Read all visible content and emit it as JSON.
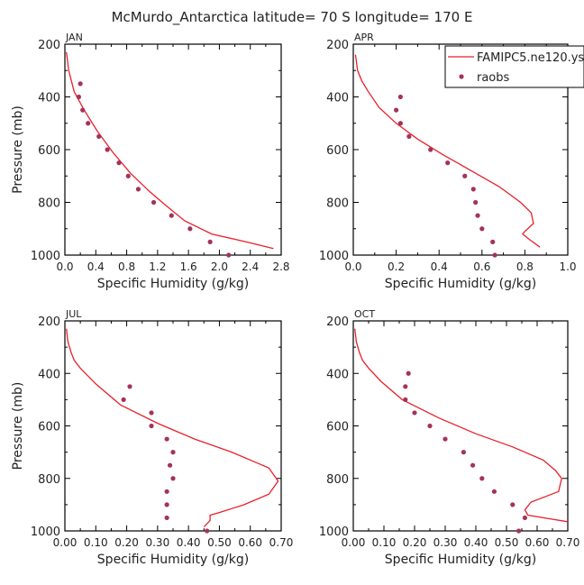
{
  "title": "McMurdo_Antarctica  latitude= 70 S longitude= 170 E",
  "colors": {
    "model": "#e8202a",
    "obs": "#a3335a",
    "axis": "#000000"
  },
  "legend": {
    "model_label": "FAMIPC5.ne120.ys",
    "obs_label": "raobs",
    "placement": "top-right"
  },
  "chart_data": [
    {
      "type": "line",
      "panel": "JAN",
      "xlabel": "Specific Humidity (g/kg)",
      "ylabel": "Pressure (mb)",
      "xlim": [
        0,
        2.8
      ],
      "ylim": [
        1000,
        200
      ],
      "xticks": [
        "0.0",
        "0.4",
        "0.8",
        "1.2",
        "1.6",
        "2.0",
        "2.4",
        "2.8"
      ],
      "yticks": [
        "200",
        "400",
        "600",
        "800",
        "1000"
      ],
      "series": [
        {
          "name": "FAMIPC5.ne120.ys",
          "kind": "line",
          "x": [
            0.02,
            0.05,
            0.12,
            0.25,
            0.42,
            0.62,
            0.85,
            1.1,
            1.3,
            1.55,
            1.9,
            2.35,
            2.7
          ],
          "y": [
            230,
            300,
            380,
            450,
            530,
            610,
            690,
            760,
            810,
            870,
            920,
            950,
            975
          ]
        },
        {
          "name": "raobs",
          "kind": "points",
          "x": [
            0.2,
            0.18,
            0.23,
            0.3,
            0.44,
            0.55,
            0.7,
            0.82,
            0.95,
            1.15,
            1.38,
            1.62,
            1.88,
            2.12
          ],
          "y": [
            350,
            400,
            450,
            500,
            550,
            600,
            650,
            700,
            750,
            800,
            850,
            900,
            950,
            1000
          ]
        }
      ]
    },
    {
      "type": "line",
      "panel": "APR",
      "xlabel": "Specific Humidity (g/kg)",
      "ylabel": "Pressure (mb)",
      "xlim": [
        0,
        1.0
      ],
      "ylim": [
        1000,
        200
      ],
      "xticks": [
        "0.0",
        "0.2",
        "0.4",
        "0.6",
        "0.8",
        "1.0"
      ],
      "yticks": [
        "200",
        "400",
        "600",
        "800",
        "1000"
      ],
      "series": [
        {
          "name": "FAMIPC5.ne120.ys",
          "kind": "line",
          "x": [
            0.01,
            0.02,
            0.04,
            0.07,
            0.12,
            0.2,
            0.3,
            0.42,
            0.55,
            0.68,
            0.78,
            0.83,
            0.84,
            0.8,
            0.79,
            0.82,
            0.87
          ],
          "y": [
            240,
            300,
            340,
            380,
            440,
            500,
            560,
            620,
            680,
            740,
            800,
            840,
            880,
            910,
            920,
            940,
            970
          ]
        },
        {
          "name": "raobs",
          "kind": "points",
          "x": [
            0.22,
            0.2,
            0.22,
            0.26,
            0.36,
            0.44,
            0.52,
            0.56,
            0.57,
            0.58,
            0.6,
            0.65,
            0.66
          ],
          "y": [
            400,
            450,
            500,
            550,
            600,
            650,
            700,
            750,
            800,
            850,
            900,
            950,
            1000
          ]
        }
      ]
    },
    {
      "type": "line",
      "panel": "JUL",
      "xlabel": "Specific Humidity (g/kg)",
      "ylabel": "Pressure (mb)",
      "xlim": [
        0,
        0.7
      ],
      "ylim": [
        1000,
        200
      ],
      "xticks": [
        "0.00",
        "0.10",
        "0.20",
        "0.30",
        "0.40",
        "0.50",
        "0.60",
        "0.70"
      ],
      "yticks": [
        "200",
        "400",
        "600",
        "800",
        "1000"
      ],
      "series": [
        {
          "name": "FAMIPC5.ne120.ys",
          "kind": "line",
          "x": [
            0.005,
            0.01,
            0.02,
            0.03,
            0.05,
            0.1,
            0.18,
            0.3,
            0.42,
            0.54,
            0.62,
            0.66,
            0.69,
            0.66,
            0.58,
            0.5,
            0.47,
            0.47,
            0.45
          ],
          "y": [
            230,
            280,
            320,
            350,
            380,
            440,
            520,
            590,
            650,
            700,
            740,
            760,
            810,
            860,
            900,
            930,
            940,
            960,
            985
          ]
        },
        {
          "name": "raobs",
          "kind": "points",
          "x": [
            0.21,
            0.19,
            0.28,
            0.28,
            0.33,
            0.35,
            0.34,
            0.35,
            0.33,
            0.33,
            0.33,
            0.46
          ],
          "y": [
            450,
            500,
            550,
            600,
            650,
            700,
            750,
            800,
            850,
            900,
            950,
            1000
          ]
        }
      ]
    },
    {
      "type": "line",
      "panel": "OCT",
      "xlabel": "Specific Humidity (g/kg)",
      "ylabel": "Pressure (mb)",
      "xlim": [
        0,
        0.7
      ],
      "ylim": [
        1000,
        200
      ],
      "xticks": [
        "0.00",
        "0.10",
        "0.20",
        "0.30",
        "0.40",
        "0.50",
        "0.60",
        "0.70"
      ],
      "yticks": [
        "200",
        "400",
        "600",
        "800",
        "1000"
      ],
      "series": [
        {
          "name": "FAMIPC5.ne120.ys",
          "kind": "line",
          "x": [
            0.005,
            0.01,
            0.02,
            0.03,
            0.05,
            0.09,
            0.16,
            0.28,
            0.4,
            0.52,
            0.62,
            0.66,
            0.68,
            0.67,
            0.58,
            0.56,
            0.57,
            0.62,
            0.7
          ],
          "y": [
            230,
            280,
            320,
            350,
            380,
            430,
            500,
            570,
            630,
            680,
            730,
            770,
            800,
            850,
            890,
            920,
            940,
            950,
            965
          ]
        },
        {
          "name": "raobs",
          "kind": "points",
          "x": [
            0.18,
            0.17,
            0.17,
            0.2,
            0.25,
            0.3,
            0.36,
            0.39,
            0.42,
            0.46,
            0.52,
            0.56,
            0.54
          ],
          "y": [
            400,
            450,
            500,
            550,
            600,
            650,
            700,
            750,
            800,
            850,
            900,
            950,
            1000
          ]
        }
      ]
    }
  ]
}
